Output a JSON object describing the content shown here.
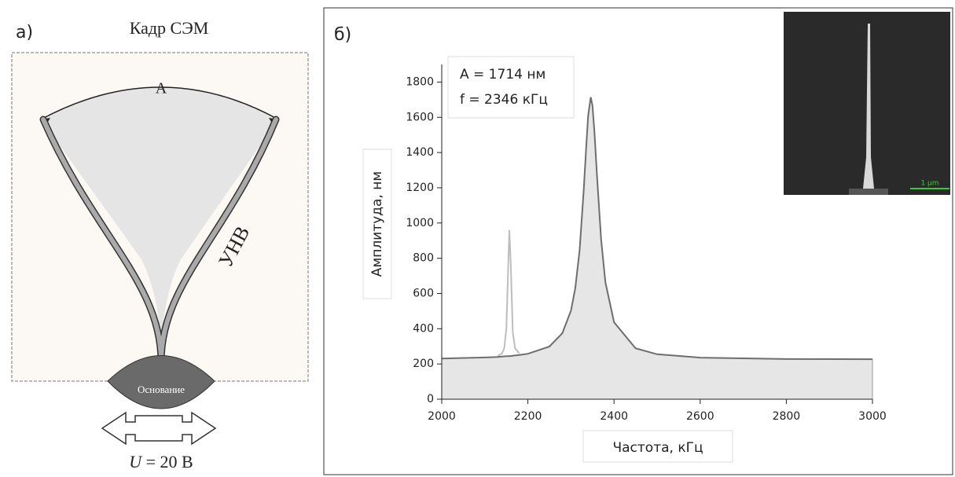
{
  "panel_a": {
    "label": "а)",
    "title": "Кадр СЭМ",
    "arc_label": "A",
    "tube_label": "УНВ",
    "base_label": "Основание",
    "voltage_symbol": "U",
    "voltage_value": "= 20 В"
  },
  "chart_data": {
    "type": "area",
    "panel_label": "б)",
    "x_label": "Частота, кГц",
    "y_label": "Амплитуда, нм",
    "annotations": [
      "A = 1714 нм",
      "f = 2346 кГц"
    ],
    "inset_scale": "1 µm",
    "xlim": [
      2000,
      3000
    ],
    "xticks": [
      2000,
      2200,
      2400,
      2600,
      2800,
      3000
    ],
    "ylim": [
      0,
      1900
    ],
    "yticks": [
      0,
      200,
      400,
      600,
      800,
      1000,
      1200,
      1400,
      1600,
      1800
    ],
    "x": [
      2000,
      2100,
      2130,
      2140,
      2145,
      2150,
      2155,
      2157,
      2160,
      2165,
      2170,
      2180,
      2200,
      2250,
      2280,
      2300,
      2310,
      2320,
      2330,
      2335,
      2340,
      2346,
      2350,
      2355,
      2360,
      2370,
      2380,
      2400,
      2450,
      2500,
      2600,
      2800,
      3000
    ],
    "series": [
      {
        "color": "#bdbdbd",
        "fill": false,
        "values": [
          null,
          null,
          245,
          260,
          290,
          400,
          800,
          960,
          780,
          380,
          290,
          260,
          null,
          null,
          null,
          null,
          null,
          null,
          null,
          null,
          null,
          null,
          null,
          null,
          null,
          null,
          null,
          null,
          null,
          null,
          null,
          null,
          null
        ]
      },
      {
        "color": "#6e6e6e",
        "fill": true,
        "values": [
          231,
          237,
          240,
          242,
          243,
          244,
          244,
          245,
          245,
          247,
          248,
          251,
          258,
          299,
          374,
          502,
          630,
          845,
          1198,
          1416,
          1611,
          1714,
          1666,
          1501,
          1285,
          905,
          664,
          437,
          289,
          255,
          236,
          228,
          227
        ]
      }
    ]
  }
}
